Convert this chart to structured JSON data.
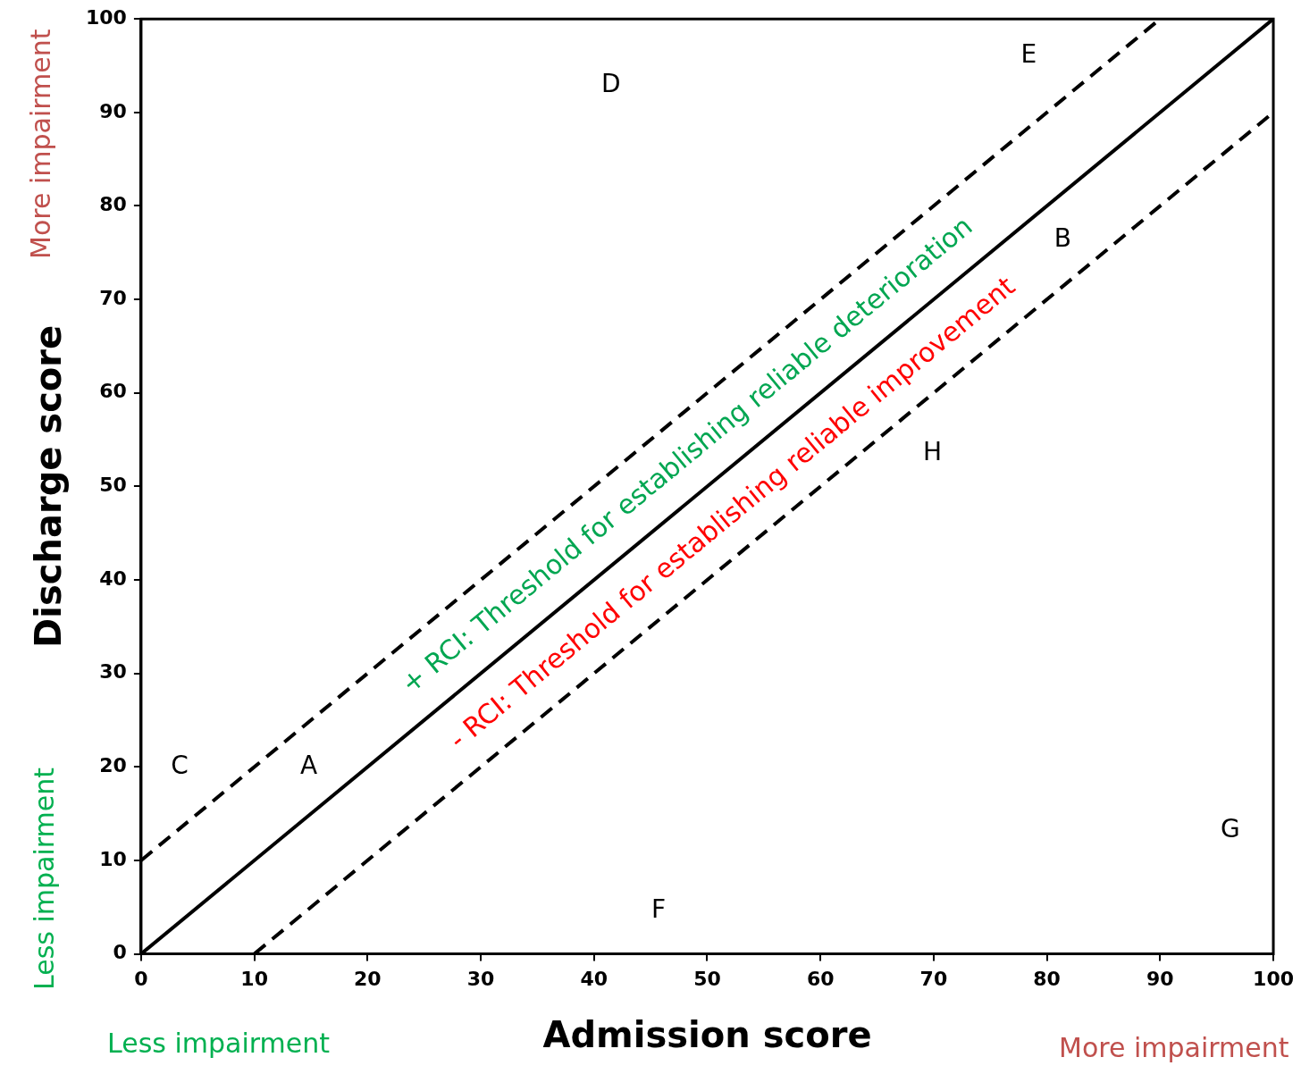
{
  "chart_data": {
    "type": "line",
    "xlabel": "Admission score",
    "ylabel": "Discharge score",
    "xlim": [
      0,
      100
    ],
    "ylim": [
      0,
      100
    ],
    "xticks": [
      0,
      10,
      20,
      30,
      40,
      50,
      60,
      70,
      80,
      90,
      100
    ],
    "yticks": [
      0,
      10,
      20,
      30,
      40,
      50,
      60,
      70,
      80,
      90,
      100
    ],
    "grid": false,
    "legend": false,
    "marker": "none",
    "series": [
      {
        "color": "#000000",
        "line_style": "solid",
        "x": [
          0,
          100
        ],
        "values": [
          0,
          100
        ]
      },
      {
        "color": "#000000",
        "line_style": "dashed",
        "x": [
          0,
          90
        ],
        "values": [
          10,
          100
        ]
      },
      {
        "color": "#000000",
        "line_style": "dashed",
        "x": [
          10,
          100
        ],
        "values": [
          0,
          90
        ]
      }
    ],
    "annotations": [
      "C",
      "A",
      "D",
      "E",
      "B",
      "H",
      "G",
      "F",
      "+ RCI: Threshold for establishing reliable deterioration",
      "- RCI: Threshold for establishing reliable improvement",
      "More impairment",
      "Less impairment",
      "Less impairment",
      "More impairment"
    ]
  }
}
